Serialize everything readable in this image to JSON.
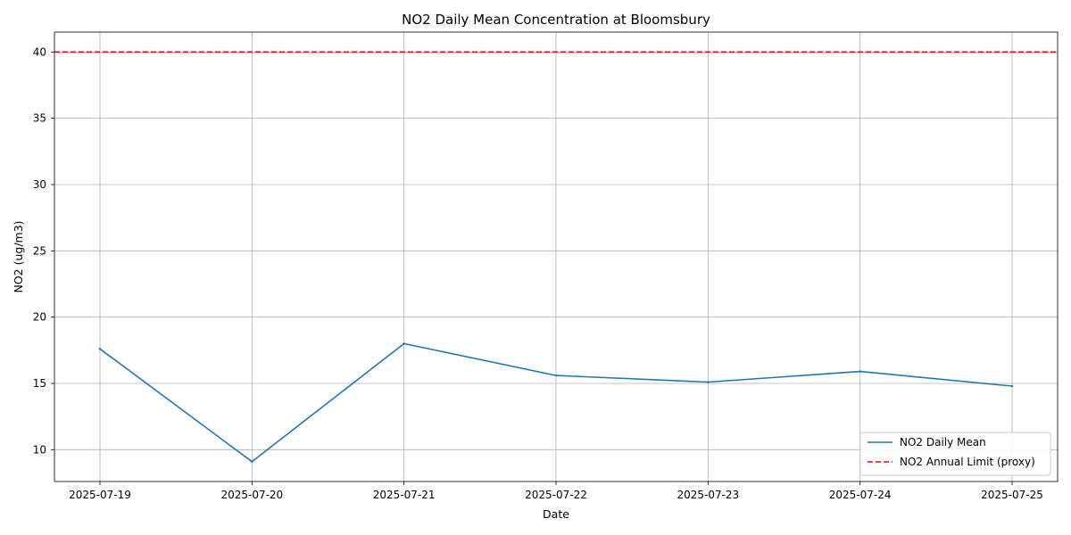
{
  "chart_data": {
    "type": "line",
    "title": "NO2 Daily Mean Concentration at Bloomsbury",
    "xlabel": "Date",
    "ylabel": "NO2 (ug/m3)",
    "x": [
      "2025-07-19",
      "2025-07-20",
      "2025-07-21",
      "2025-07-22",
      "2025-07-23",
      "2025-07-24",
      "2025-07-25"
    ],
    "ylim": [
      7.6,
      41.5
    ],
    "yticks": [
      10,
      15,
      20,
      25,
      30,
      35,
      40
    ],
    "grid": true,
    "legend_position": "lower-right",
    "series": [
      {
        "name": "NO2 Daily Mean",
        "values": [
          17.6,
          9.1,
          18.0,
          15.6,
          15.1,
          15.9,
          14.8
        ],
        "color": "#1f77b4",
        "style": "solid"
      }
    ],
    "reference_lines": [
      {
        "name": "NO2 Annual Limit (proxy)",
        "y": 40,
        "color": "#ff0000",
        "style": "dashed"
      }
    ]
  }
}
